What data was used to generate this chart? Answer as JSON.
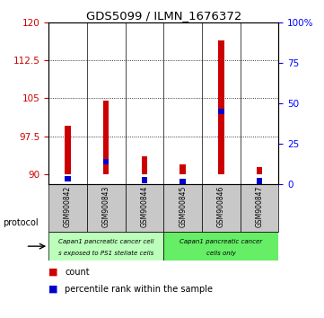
{
  "title": "GDS5099 / ILMN_1676372",
  "samples": [
    "GSM900842",
    "GSM900843",
    "GSM900844",
    "GSM900845",
    "GSM900846",
    "GSM900847"
  ],
  "red_values": [
    99.5,
    104.5,
    93.5,
    92.0,
    116.5,
    91.5
  ],
  "blue_values": [
    3.5,
    14.0,
    2.5,
    1.5,
    45.0,
    2.0
  ],
  "ylim_left": [
    88,
    120
  ],
  "ylim_right": [
    0,
    100
  ],
  "yticks_left": [
    90,
    97.5,
    105,
    112.5,
    120
  ],
  "ytick_labels_left": [
    "90",
    "97.5",
    "105",
    "112.5",
    "120"
  ],
  "yticks_right": [
    0,
    25,
    50,
    75,
    100
  ],
  "ytick_labels_right": [
    "0",
    "25",
    "50",
    "75",
    "100%"
  ],
  "bar_bottom": 90,
  "bar_width": 0.15,
  "red_color": "#cc0000",
  "blue_color": "#0000cc",
  "group1_label_line1": "Capan1 pancreatic cancer cell",
  "group1_label_line2": "s exposed to PS1 stellate cells",
  "group2_label_line1": "Capan1 pancreatic cancer",
  "group2_label_line2": "cells only",
  "group1_color": "#bbffbb",
  "group2_color": "#66ee66",
  "protocol_label": "protocol",
  "legend_count": "count",
  "legend_percentile": "percentile rank within the sample",
  "grid_color": "black",
  "tick_label_area_facecolor": "#c8c8c8"
}
